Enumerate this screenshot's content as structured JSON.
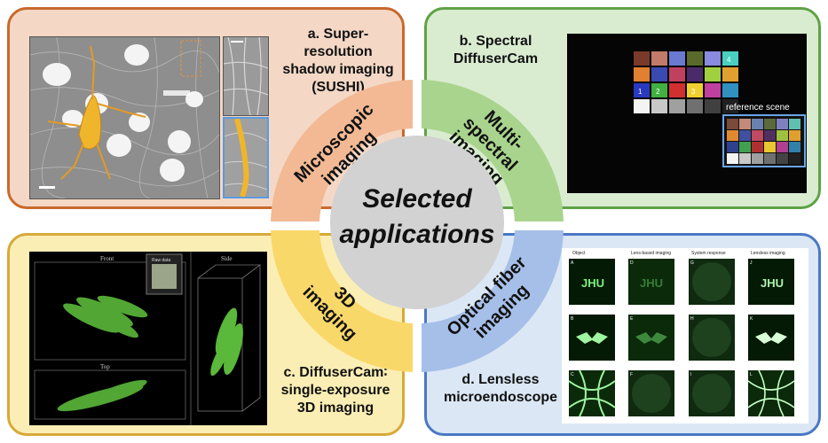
{
  "center": {
    "line1": "Selected",
    "line2": "applications"
  },
  "panel_a": {
    "title_line1": "a. Super-resolution",
    "title_line2": "shadow imaging",
    "title_line3": "(SUSHI)",
    "ring_label_line1": "Microscopic",
    "ring_label_line2": "imaging",
    "color": "#f2b994"
  },
  "panel_b": {
    "title_line1": "b. Spectral",
    "title_line2": "DiffuserCam",
    "ring_label_line1": "Multi-",
    "ring_label_line2": "spectral",
    "ring_label_line3": "imaging",
    "reference_label": "reference scene",
    "markers": [
      "1",
      "2",
      "3",
      "4"
    ],
    "color": "#a9d48e"
  },
  "panel_c": {
    "title_line1": "c. DiffuserCam∶",
    "title_line2": "single-exposure",
    "title_line3": "3D imaging",
    "ring_label_line1": "3D",
    "ring_label_line2": "imaging",
    "view_front": "Front",
    "view_top": "Top",
    "view_side": "Side",
    "raw_data": "Raw data",
    "color": "#f9d86a"
  },
  "panel_d": {
    "title_line1": "d. Lensless",
    "title_line2": "microendoscope",
    "ring_label_line1": "Optical fiber",
    "ring_label_line2": "imaging",
    "columns": [
      "Object",
      "Lens-based imaging",
      "System response",
      "Lensless imaging"
    ],
    "row_labels": [
      [
        "A",
        "D",
        "G",
        "J"
      ],
      [
        "B",
        "E",
        "H",
        "K"
      ],
      [
        "C",
        "F",
        "I",
        "L"
      ]
    ],
    "color": "#a6bfe8"
  }
}
